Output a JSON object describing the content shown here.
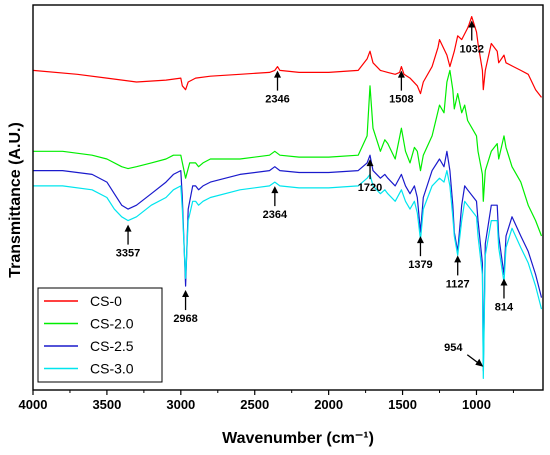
{
  "chart_data": {
    "type": "line",
    "title": "",
    "xlabel": "Wavenumber (cm⁻¹)",
    "ylabel": "Transmittance (A.U.)",
    "xlim": [
      4000,
      550
    ],
    "ylim": [
      0,
      100
    ],
    "x_ticks": [
      4000,
      3500,
      3000,
      2500,
      2000,
      1500,
      1000
    ],
    "x_reversed": true,
    "y_ticks_shown": false,
    "grid": false,
    "legend_position": "bottom-left",
    "series": [
      {
        "name": "CS-0",
        "color": "#ff0000",
        "x": [
          4000,
          3700,
          3500,
          3300,
          3100,
          3000,
          2990,
          2968,
          2950,
          2900,
          2800,
          2600,
          2400,
          2364,
          2346,
          2330,
          2200,
          2000,
          1800,
          1740,
          1720,
          1700,
          1650,
          1600,
          1550,
          1520,
          1508,
          1490,
          1450,
          1400,
          1379,
          1360,
          1300,
          1260,
          1250,
          1200,
          1180,
          1150,
          1127,
          1100,
          1060,
          1050,
          1032,
          1000,
          990,
          960,
          954,
          940,
          900,
          860,
          850,
          814,
          800,
          750,
          700,
          650,
          600,
          560
        ],
        "values": [
          83,
          82,
          81,
          80,
          80.5,
          81,
          79,
          78,
          80,
          81,
          81.5,
          82,
          82.5,
          83,
          84,
          83,
          82.5,
          82.5,
          83,
          86,
          88,
          85,
          83,
          82.5,
          82,
          82.5,
          84,
          82,
          81,
          79,
          77,
          80,
          84,
          89,
          91,
          87,
          84,
          88,
          92,
          91,
          94,
          95,
          97,
          93,
          90,
          83,
          78,
          83,
          90,
          88,
          85,
          87,
          85,
          84,
          83,
          82,
          78,
          76
        ]
      },
      {
        "name": "CS-2.0",
        "color": "#00ee00",
        "x": [
          4000,
          3800,
          3600,
          3500,
          3400,
          3357,
          3300,
          3200,
          3100,
          3050,
          3000,
          2968,
          2940,
          2900,
          2880,
          2850,
          2800,
          2600,
          2400,
          2364,
          2330,
          2200,
          2000,
          1800,
          1740,
          1720,
          1700,
          1650,
          1620,
          1600,
          1550,
          1508,
          1480,
          1450,
          1420,
          1400,
          1379,
          1360,
          1300,
          1250,
          1220,
          1200,
          1180,
          1160,
          1150,
          1127,
          1100,
          1080,
          1060,
          1000,
          990,
          960,
          954,
          940,
          900,
          860,
          850,
          814,
          800,
          760,
          700,
          650,
          600,
          560
        ],
        "values": [
          62,
          62,
          61,
          60,
          58,
          57.5,
          58,
          59,
          60,
          61,
          61,
          55,
          59,
          59,
          58,
          59,
          60,
          60,
          61,
          62,
          61,
          60.5,
          60.5,
          61,
          66,
          79,
          68,
          62,
          65,
          64,
          60,
          68,
          62,
          59,
          63,
          62,
          57,
          61,
          66,
          74,
          72,
          80,
          83,
          78,
          73,
          77,
          72,
          74,
          70,
          66,
          62,
          56,
          49,
          57,
          62,
          64,
          60,
          66,
          63,
          58,
          54,
          48,
          44,
          40
        ]
      },
      {
        "name": "CS-2.5",
        "color": "#1a1acc",
        "x": [
          4000,
          3800,
          3600,
          3500,
          3450,
          3400,
          3357,
          3300,
          3200,
          3100,
          3050,
          3000,
          2990,
          2968,
          2950,
          2920,
          2900,
          2880,
          2850,
          2800,
          2600,
          2400,
          2364,
          2330,
          2200,
          2000,
          1800,
          1740,
          1720,
          1700,
          1650,
          1620,
          1600,
          1550,
          1508,
          1480,
          1450,
          1420,
          1400,
          1379,
          1360,
          1300,
          1250,
          1220,
          1200,
          1180,
          1160,
          1150,
          1127,
          1100,
          1080,
          1060,
          1000,
          990,
          960,
          954,
          940,
          900,
          860,
          850,
          814,
          800,
          760,
          700,
          650,
          600,
          560
        ],
        "values": [
          57,
          57,
          56,
          54,
          51,
          48,
          47,
          48,
          51,
          54,
          56,
          57,
          50,
          27,
          47,
          53,
          53,
          52,
          53,
          54,
          56,
          57,
          58,
          57,
          56.5,
          56.5,
          57,
          59,
          61,
          57,
          55,
          56,
          55,
          53,
          56,
          53,
          51,
          53,
          50,
          41,
          50,
          57,
          60,
          58,
          62,
          57,
          48,
          41,
          36,
          48,
          53,
          52,
          49,
          44,
          33,
          5,
          38,
          48,
          48,
          40,
          30,
          40,
          45,
          40,
          36,
          30,
          24
        ]
      },
      {
        "name": "CS-3.0",
        "color": "#00e5ee",
        "x": [
          4000,
          3800,
          3600,
          3500,
          3450,
          3400,
          3357,
          3300,
          3200,
          3100,
          3050,
          3000,
          2990,
          2968,
          2950,
          2920,
          2900,
          2880,
          2850,
          2800,
          2600,
          2400,
          2364,
          2330,
          2200,
          2000,
          1800,
          1740,
          1720,
          1700,
          1650,
          1620,
          1600,
          1550,
          1508,
          1480,
          1450,
          1420,
          1400,
          1379,
          1360,
          1300,
          1250,
          1220,
          1200,
          1180,
          1160,
          1150,
          1127,
          1100,
          1080,
          1060,
          1000,
          990,
          960,
          954,
          940,
          900,
          860,
          850,
          814,
          800,
          760,
          700,
          650,
          600,
          560
        ],
        "values": [
          53,
          53,
          52,
          50,
          47,
          45,
          44,
          45,
          48,
          50,
          52,
          53,
          47,
          29,
          44,
          49,
          49,
          48,
          49,
          50,
          52,
          53,
          54,
          53,
          52.5,
          52.5,
          53,
          55,
          56,
          53,
          51,
          52,
          51,
          49,
          52,
          49,
          47,
          49,
          46,
          39,
          47,
          53,
          55,
          54,
          57,
          53,
          45,
          40,
          35,
          44,
          49,
          48,
          45,
          40,
          30,
          3,
          35,
          44,
          44,
          37,
          28,
          37,
          42,
          37,
          33,
          27,
          21
        ]
      }
    ],
    "annotations": [
      {
        "label": "3357",
        "x": 3357
      },
      {
        "label": "2968",
        "x": 2968
      },
      {
        "label": "2364",
        "x": 2364
      },
      {
        "label": "2346",
        "x": 2346
      },
      {
        "label": "1720",
        "x": 1720
      },
      {
        "label": "1508",
        "x": 1508
      },
      {
        "label": "1379",
        "x": 1379
      },
      {
        "label": "1127",
        "x": 1127
      },
      {
        "label": "1032",
        "x": 1032
      },
      {
        "label": "954",
        "x": 954
      },
      {
        "label": "814",
        "x": 814
      }
    ]
  }
}
